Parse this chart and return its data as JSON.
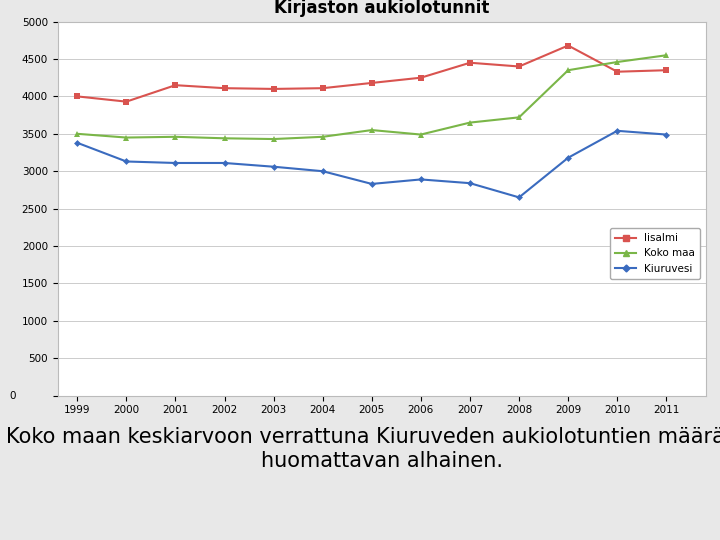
{
  "title": "Kirjaston aukiolotunnit",
  "years": [
    1999,
    2000,
    2001,
    2002,
    2003,
    2004,
    2005,
    2006,
    2007,
    2008,
    2009,
    2010,
    2011
  ],
  "iisalmi": [
    4000,
    3930,
    4150,
    4110,
    4100,
    4110,
    4180,
    4250,
    4450,
    4400,
    4680,
    4330,
    4350
  ],
  "koko_maa": [
    3500,
    3450,
    3460,
    3440,
    3430,
    3460,
    3550,
    3490,
    3650,
    3720,
    4350,
    4460,
    4550
  ],
  "kiuruvesi": [
    3380,
    3130,
    3110,
    3110,
    3060,
    3000,
    2830,
    2890,
    2840,
    2650,
    3180,
    3540,
    3490
  ],
  "iisalmi_color": "#d9534f",
  "koko_maa_color": "#7ab648",
  "kiuruvesi_color": "#3a6bbf",
  "ylim": [
    0,
    5000
  ],
  "yticks": [
    0,
    500,
    1000,
    1500,
    2000,
    2500,
    3000,
    3500,
    4000,
    4500,
    5000
  ],
  "legend_labels": [
    "Iisalmi",
    "Koko maa",
    "Kiuruvesi"
  ],
  "caption_line1": "Koko maan keskiarvoon verrattuna Kiuruveden aukiolotuntien määrä on",
  "caption_line2": "huomattavan alhainen.",
  "bg_color": "#e8e8e8",
  "plot_bg_color": "#ffffff",
  "caption_fontsize": 15,
  "title_fontsize": 12
}
